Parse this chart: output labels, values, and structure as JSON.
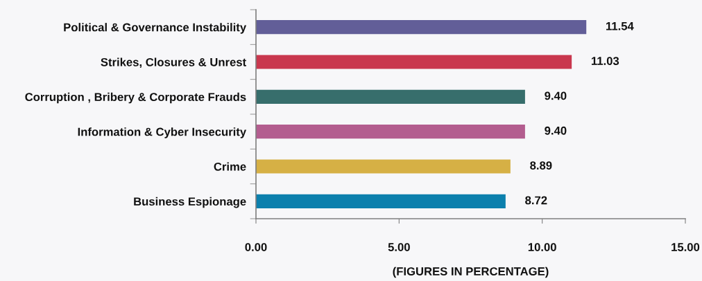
{
  "chart_data": {
    "type": "bar",
    "orientation": "horizontal",
    "xlabel": "(FIGURES IN PERCENTAGE)",
    "categories": [
      "Political & Governance Instability",
      "Strikes, Closures & Unrest",
      "Corruption , Bribery & Corporate Frauds",
      "Information & Cyber Insecurity",
      "Crime",
      "Business Espionage"
    ],
    "values": [
      11.54,
      11.03,
      9.4,
      9.4,
      8.89,
      8.72
    ],
    "colors": [
      "#625e98",
      "#c9374e",
      "#376e6c",
      "#b35d8f",
      "#d6b045",
      "#0c80ad"
    ],
    "value_labels": [
      "11.54",
      "11.03",
      "9.40",
      "9.40",
      "8.89",
      "8.72"
    ],
    "xlim": [
      0,
      15
    ],
    "xticks": [
      {
        "value": 0,
        "label": "0.00"
      },
      {
        "value": 5,
        "label": "5.00"
      },
      {
        "value": 10,
        "label": "10.00"
      },
      {
        "value": 15,
        "label": "15.00"
      }
    ],
    "grid": false,
    "legend": false
  }
}
